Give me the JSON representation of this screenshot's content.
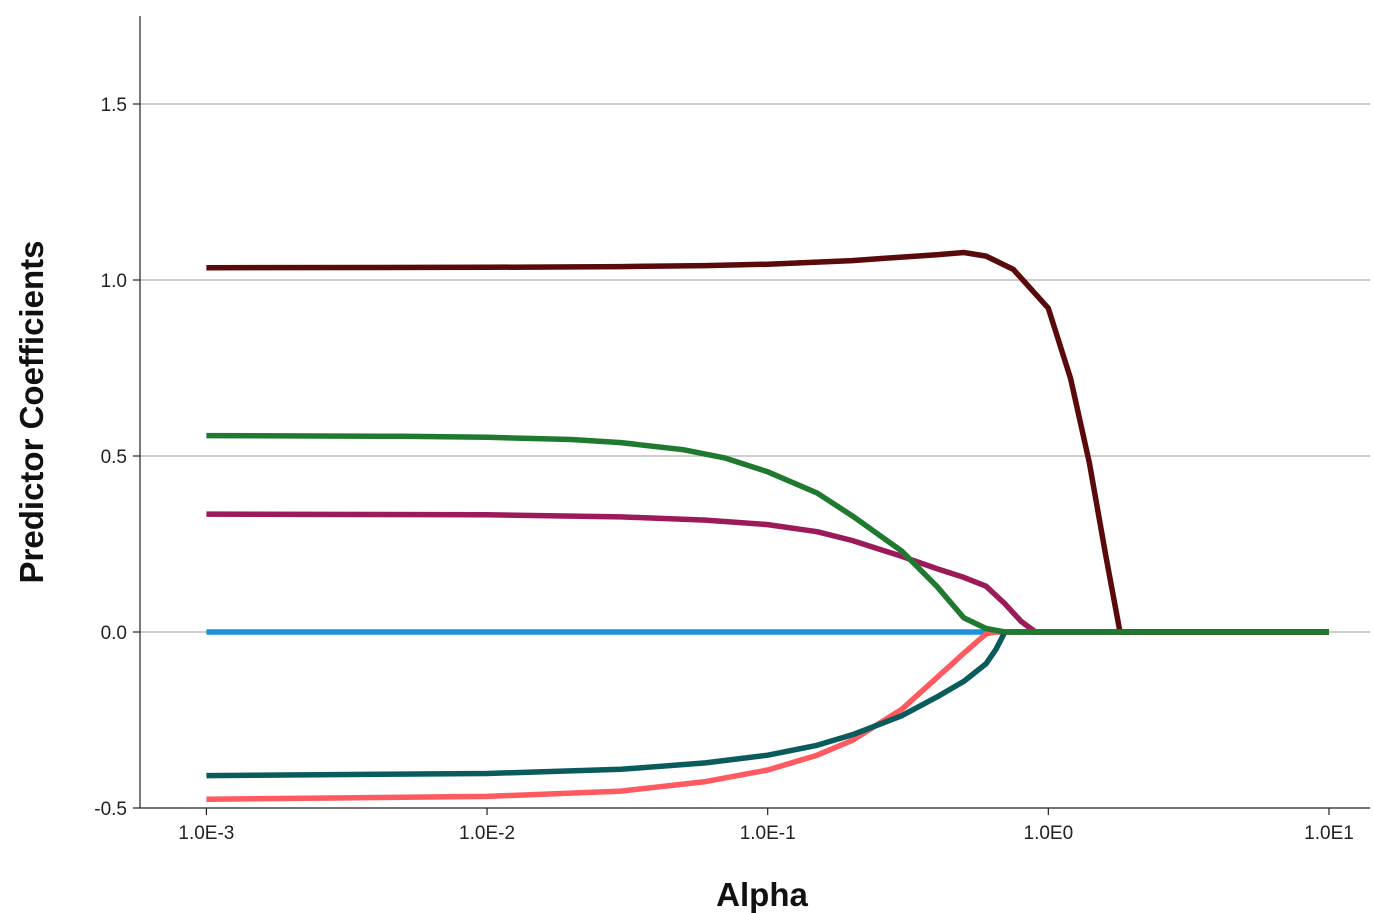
{
  "chart_data": {
    "type": "line",
    "title": "",
    "xlabel": "Alpha",
    "ylabel": "Predictor Coefficients",
    "x_scale": "log",
    "xlim": [
      0.00058,
      14.0
    ],
    "ylim": [
      -0.5,
      1.75
    ],
    "x_ticks": [
      {
        "value": 0.001,
        "label": "1.0E-3"
      },
      {
        "value": 0.01,
        "label": "1.0E-2"
      },
      {
        "value": 0.1,
        "label": "1.0E-1"
      },
      {
        "value": 1,
        "label": "1.0E0"
      },
      {
        "value": 10,
        "label": "1.0E1"
      }
    ],
    "y_ticks": [
      {
        "value": -0.5,
        "label": "-0.5"
      },
      {
        "value": 0.0,
        "label": "0.0"
      },
      {
        "value": 0.5,
        "label": "0.5"
      },
      {
        "value": 1.0,
        "label": "1.0"
      },
      {
        "value": 1.5,
        "label": "1.5"
      }
    ],
    "grid": "horizontal",
    "legend": "none",
    "series": [
      {
        "color": "#1e90dc",
        "points": [
          [
            0.001,
            0.0
          ],
          [
            10,
            0.0
          ]
        ]
      },
      {
        "color": "#ff5a5f",
        "points": [
          [
            0.001,
            -0.475
          ],
          [
            0.01,
            -0.467
          ],
          [
            0.03,
            -0.452
          ],
          [
            0.06,
            -0.425
          ],
          [
            0.1,
            -0.392
          ],
          [
            0.15,
            -0.35
          ],
          [
            0.2,
            -0.308
          ],
          [
            0.3,
            -0.22
          ],
          [
            0.4,
            -0.13
          ],
          [
            0.5,
            -0.06
          ],
          [
            0.6,
            -0.005
          ],
          [
            0.65,
            0.0
          ],
          [
            10,
            0.0
          ]
        ]
      },
      {
        "color": "#0a5c5c",
        "points": [
          [
            0.001,
            -0.408
          ],
          [
            0.01,
            -0.402
          ],
          [
            0.03,
            -0.39
          ],
          [
            0.06,
            -0.372
          ],
          [
            0.1,
            -0.35
          ],
          [
            0.15,
            -0.322
          ],
          [
            0.2,
            -0.292
          ],
          [
            0.3,
            -0.238
          ],
          [
            0.4,
            -0.185
          ],
          [
            0.5,
            -0.14
          ],
          [
            0.6,
            -0.09
          ],
          [
            0.65,
            -0.05
          ],
          [
            0.7,
            0.0
          ],
          [
            10,
            0.0
          ]
        ]
      },
      {
        "color": "#9c1a5a",
        "points": [
          [
            0.001,
            0.335
          ],
          [
            0.01,
            0.333
          ],
          [
            0.03,
            0.327
          ],
          [
            0.06,
            0.318
          ],
          [
            0.1,
            0.305
          ],
          [
            0.15,
            0.285
          ],
          [
            0.2,
            0.26
          ],
          [
            0.3,
            0.215
          ],
          [
            0.4,
            0.18
          ],
          [
            0.5,
            0.155
          ],
          [
            0.6,
            0.13
          ],
          [
            0.7,
            0.08
          ],
          [
            0.8,
            0.03
          ],
          [
            0.9,
            0.0
          ],
          [
            10,
            0.0
          ]
        ]
      },
      {
        "color": "#5a0a0a",
        "points": [
          [
            0.001,
            1.035
          ],
          [
            0.01,
            1.036
          ],
          [
            0.03,
            1.038
          ],
          [
            0.06,
            1.041
          ],
          [
            0.1,
            1.045
          ],
          [
            0.2,
            1.055
          ],
          [
            0.3,
            1.065
          ],
          [
            0.4,
            1.072
          ],
          [
            0.5,
            1.078
          ],
          [
            0.6,
            1.068
          ],
          [
            0.75,
            1.03
          ],
          [
            1.0,
            0.92
          ],
          [
            1.2,
            0.72
          ],
          [
            1.4,
            0.48
          ],
          [
            1.6,
            0.22
          ],
          [
            1.8,
            0.0
          ],
          [
            10,
            0.0
          ]
        ]
      },
      {
        "color": "#1f7a30",
        "points": [
          [
            0.001,
            0.558
          ],
          [
            0.005,
            0.556
          ],
          [
            0.01,
            0.553
          ],
          [
            0.02,
            0.547
          ],
          [
            0.03,
            0.538
          ],
          [
            0.05,
            0.518
          ],
          [
            0.07,
            0.495
          ],
          [
            0.1,
            0.455
          ],
          [
            0.15,
            0.395
          ],
          [
            0.2,
            0.33
          ],
          [
            0.3,
            0.23
          ],
          [
            0.4,
            0.13
          ],
          [
            0.5,
            0.04
          ],
          [
            0.6,
            0.01
          ],
          [
            0.7,
            0.0
          ],
          [
            10,
            0.0
          ]
        ]
      }
    ]
  }
}
